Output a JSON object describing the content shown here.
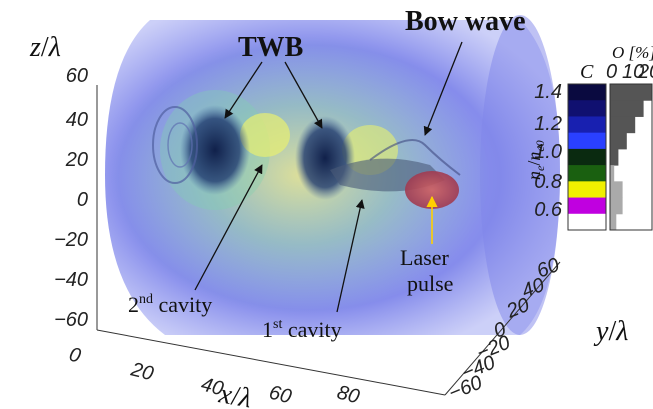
{
  "labels": {
    "twb": "TWB",
    "bow_wave": "Bow wave",
    "laser_line1": "Laser",
    "laser_line2": "pulse",
    "cavity2_prefix": "2",
    "cavity2_sup": "nd",
    "cavity2_suffix": " cavity",
    "cavity1_prefix": "1",
    "cavity1_sup": "st",
    "cavity1_suffix": " cavity"
  },
  "axes": {
    "z": {
      "label_var": "z",
      "label_sep": "/",
      "label_unit": "λ",
      "ticks": [
        "60",
        "40",
        "20",
        "0",
        "−20",
        "−40",
        "−60"
      ]
    },
    "x": {
      "label_var": "x",
      "label_sep": "/",
      "label_unit": "λ",
      "ticks": [
        "0",
        "20",
        "40",
        "60",
        "80"
      ]
    },
    "y": {
      "label_var": "y",
      "label_sep": "/",
      "label_unit": "λ",
      "ticks": [
        "60",
        "40",
        "20",
        "0",
        "−20",
        "−40",
        "−60"
      ]
    }
  },
  "colorbar": {
    "title_c": "C",
    "title_o": "O [%]",
    "o_ticks": [
      "0",
      "10",
      "20"
    ],
    "ylabel_main": "n",
    "ylabel_sub": "e",
    "ylabel_den": "n",
    "ylabel_den_sub": "e0",
    "ticks": [
      "1.4",
      "1.2",
      "1.0",
      "0.8",
      "0.6"
    ],
    "colors": [
      "#0a0a40",
      "#101070",
      "#1820b0",
      "#2a40ff",
      "#0a2a10",
      "#1a6010",
      "#f0f000",
      "#c000e0",
      "#ffffff"
    ],
    "opacity_fraction": [
      1.0,
      0.8,
      0.6,
      0.4,
      0.2,
      0.1,
      0.3,
      0.3,
      0.15
    ]
  },
  "colors": {
    "volume_blue": "#6a6ee6",
    "cavity_dark": "#1a2a50",
    "green_glow": "#8fd0a0",
    "laser_red": "#c05050",
    "arrow_yellow": "#ffd000"
  }
}
